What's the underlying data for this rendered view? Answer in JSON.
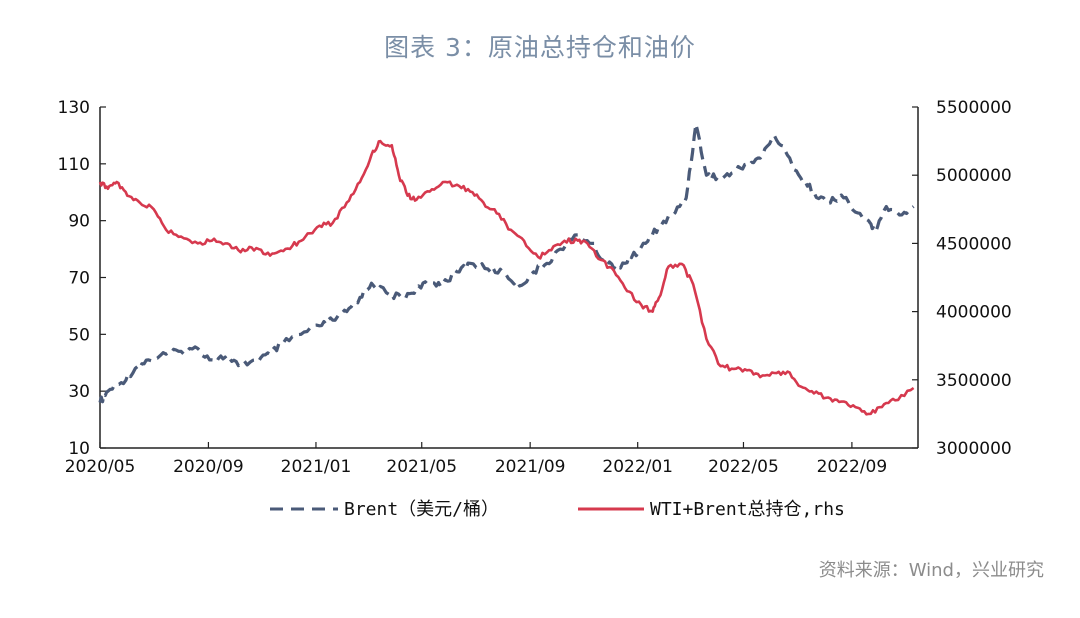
{
  "title": "图表 3：原油总持仓和油价",
  "source": "资料来源：Wind，兴业研究",
  "colors": {
    "brent": "#4a5a78",
    "oi": "#d6394e",
    "axis": "#222222",
    "title": "#7a8ea6"
  },
  "chart_data": {
    "type": "line",
    "x_ticks": [
      "2020/05",
      "2020/09",
      "2021/01",
      "2021/05",
      "2021/09",
      "2022/01",
      "2022/05",
      "2022/09"
    ],
    "x_range": [
      "2020-05-01",
      "2022-11-15"
    ],
    "y_left": {
      "ticks": [
        "130",
        "110",
        "90",
        "70",
        "50",
        "30",
        "10"
      ],
      "range": [
        10,
        130
      ]
    },
    "y_right": {
      "ticks": [
        "5500000",
        "5000000",
        "4500000",
        "4000000",
        "3500000",
        "3000000"
      ],
      "range": [
        3000000,
        5500000
      ]
    },
    "grid": false,
    "legend_position": "bottom",
    "series": [
      {
        "name": "Brent（美元/桶）",
        "axis": "left",
        "style": "dashed",
        "points": [
          [
            "2020-05-01",
            26
          ],
          [
            "2020-05-10",
            30
          ],
          [
            "2020-05-25",
            33
          ],
          [
            "2020-06-10",
            38
          ],
          [
            "2020-06-25",
            41
          ],
          [
            "2020-07-15",
            43
          ],
          [
            "2020-08-01",
            44
          ],
          [
            "2020-08-20",
            45
          ],
          [
            "2020-09-05",
            41
          ],
          [
            "2020-09-20",
            42
          ],
          [
            "2020-10-05",
            39
          ],
          [
            "2020-10-25",
            41
          ],
          [
            "2020-11-10",
            43
          ],
          [
            "2020-11-25",
            47
          ],
          [
            "2020-12-15",
            50
          ],
          [
            "2021-01-05",
            53
          ],
          [
            "2021-01-20",
            55
          ],
          [
            "2021-02-05",
            58
          ],
          [
            "2021-02-20",
            63
          ],
          [
            "2021-03-05",
            68
          ],
          [
            "2021-03-25",
            64
          ],
          [
            "2021-04-10",
            63
          ],
          [
            "2021-04-25",
            66
          ],
          [
            "2021-05-10",
            68
          ],
          [
            "2021-05-25",
            68
          ],
          [
            "2021-06-10",
            72
          ],
          [
            "2021-06-25",
            75
          ],
          [
            "2021-07-15",
            73
          ],
          [
            "2021-08-01",
            72
          ],
          [
            "2021-08-20",
            67
          ],
          [
            "2021-09-05",
            72
          ],
          [
            "2021-09-20",
            75
          ],
          [
            "2021-10-05",
            80
          ],
          [
            "2021-10-25",
            85
          ],
          [
            "2021-11-10",
            82
          ],
          [
            "2021-11-25",
            75
          ],
          [
            "2021-12-10",
            74
          ],
          [
            "2021-12-25",
            77
          ],
          [
            "2022-01-10",
            82
          ],
          [
            "2022-01-25",
            88
          ],
          [
            "2022-02-10",
            92
          ],
          [
            "2022-02-25",
            98
          ],
          [
            "2022-03-08",
            124
          ],
          [
            "2022-03-20",
            106
          ],
          [
            "2022-04-05",
            105
          ],
          [
            "2022-04-20",
            107
          ],
          [
            "2022-05-05",
            110
          ],
          [
            "2022-05-20",
            112
          ],
          [
            "2022-06-05",
            120
          ],
          [
            "2022-06-20",
            113
          ],
          [
            "2022-07-05",
            105
          ],
          [
            "2022-07-20",
            100
          ],
          [
            "2022-08-05",
            96
          ],
          [
            "2022-08-20",
            99
          ],
          [
            "2022-09-05",
            93
          ],
          [
            "2022-09-20",
            90
          ],
          [
            "2022-09-28",
            86
          ],
          [
            "2022-10-10",
            95
          ],
          [
            "2022-10-25",
            92
          ],
          [
            "2022-11-10",
            95
          ]
        ]
      },
      {
        "name": "WTI+Brent总持仓,rhs",
        "axis": "right",
        "style": "solid",
        "points": [
          [
            "2020-05-01",
            4950000
          ],
          [
            "2020-05-10",
            4900000
          ],
          [
            "2020-05-20",
            4950000
          ],
          [
            "2020-06-01",
            4850000
          ],
          [
            "2020-06-15",
            4800000
          ],
          [
            "2020-07-01",
            4750000
          ],
          [
            "2020-07-15",
            4600000
          ],
          [
            "2020-08-01",
            4550000
          ],
          [
            "2020-08-20",
            4500000
          ],
          [
            "2020-09-05",
            4520000
          ],
          [
            "2020-09-20",
            4500000
          ],
          [
            "2020-10-05",
            4450000
          ],
          [
            "2020-10-20",
            4470000
          ],
          [
            "2020-11-05",
            4420000
          ],
          [
            "2020-11-20",
            4440000
          ],
          [
            "2020-12-05",
            4480000
          ],
          [
            "2020-12-20",
            4550000
          ],
          [
            "2021-01-05",
            4630000
          ],
          [
            "2021-01-20",
            4650000
          ],
          [
            "2021-02-05",
            4800000
          ],
          [
            "2021-02-20",
            4950000
          ],
          [
            "2021-03-05",
            5150000
          ],
          [
            "2021-03-15",
            5250000
          ],
          [
            "2021-03-28",
            5220000
          ],
          [
            "2021-04-05",
            5000000
          ],
          [
            "2021-04-15",
            4850000
          ],
          [
            "2021-04-25",
            4820000
          ],
          [
            "2021-05-10",
            4880000
          ],
          [
            "2021-05-25",
            4950000
          ],
          [
            "2021-06-10",
            4930000
          ],
          [
            "2021-06-25",
            4880000
          ],
          [
            "2021-07-10",
            4800000
          ],
          [
            "2021-07-25",
            4720000
          ],
          [
            "2021-08-10",
            4600000
          ],
          [
            "2021-08-25",
            4520000
          ],
          [
            "2021-09-10",
            4400000
          ],
          [
            "2021-09-25",
            4450000
          ],
          [
            "2021-10-10",
            4520000
          ],
          [
            "2021-10-25",
            4520000
          ],
          [
            "2021-11-05",
            4500000
          ],
          [
            "2021-11-20",
            4380000
          ],
          [
            "2021-12-05",
            4300000
          ],
          [
            "2021-12-20",
            4150000
          ],
          [
            "2022-01-05",
            4050000
          ],
          [
            "2022-01-18",
            4000000
          ],
          [
            "2022-01-25",
            4100000
          ],
          [
            "2022-02-05",
            4330000
          ],
          [
            "2022-02-20",
            4350000
          ],
          [
            "2022-03-05",
            4200000
          ],
          [
            "2022-03-20",
            3800000
          ],
          [
            "2022-04-05",
            3600000
          ],
          [
            "2022-04-20",
            3580000
          ],
          [
            "2022-05-05",
            3570000
          ],
          [
            "2022-05-20",
            3520000
          ],
          [
            "2022-06-05",
            3550000
          ],
          [
            "2022-06-20",
            3560000
          ],
          [
            "2022-07-05",
            3450000
          ],
          [
            "2022-07-20",
            3400000
          ],
          [
            "2022-08-05",
            3370000
          ],
          [
            "2022-08-20",
            3340000
          ],
          [
            "2022-09-05",
            3300000
          ],
          [
            "2022-09-20",
            3250000
          ],
          [
            "2022-10-05",
            3300000
          ],
          [
            "2022-10-20",
            3350000
          ],
          [
            "2022-11-10",
            3440000
          ]
        ]
      }
    ]
  }
}
